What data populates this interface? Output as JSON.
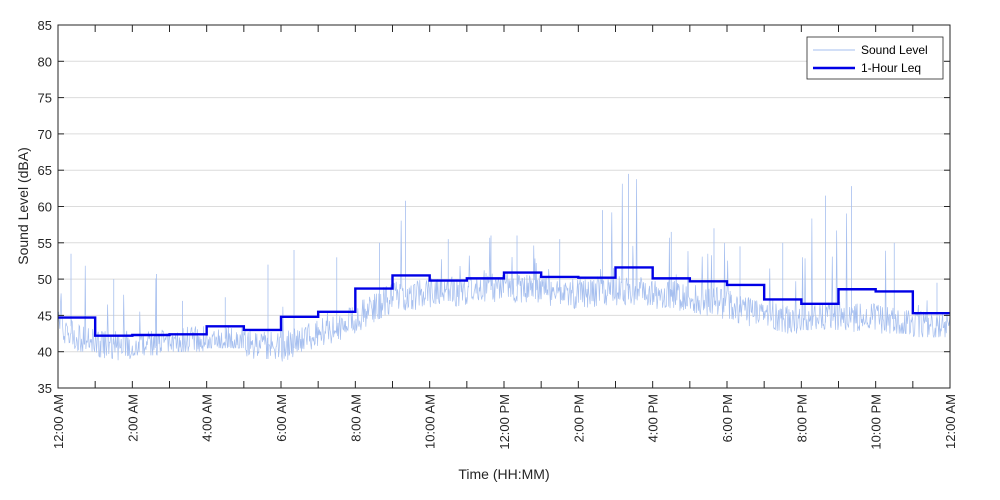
{
  "chart_data": {
    "type": "line",
    "xlabel": "Time (HH:MM)",
    "ylabel": "Sound Level (dBA)",
    "ylim": [
      35,
      85
    ],
    "yticks": [
      35,
      40,
      45,
      50,
      55,
      60,
      65,
      70,
      75,
      80,
      85
    ],
    "xlim_hours": [
      0,
      24
    ],
    "xtick_labels": [
      "12:00 AM",
      "2:00 AM",
      "4:00 AM",
      "6:00 AM",
      "8:00 AM",
      "10:00 AM",
      "12:00 PM",
      "2:00 PM",
      "4:00 PM",
      "6:00 PM",
      "8:00 PM",
      "10:00 PM",
      "12:00 AM"
    ],
    "grid": "horizontal",
    "legend": {
      "placement": "top-right",
      "entries": [
        "Sound Level",
        "1-Hour Leq"
      ]
    },
    "series": [
      {
        "name": "Sound Level",
        "style": "thin-line",
        "color": "#a6bfef",
        "hourly_typical": [
          43.5,
          41.0,
          40.8,
          41.0,
          41.8,
          41.2,
          40.5,
          42.5,
          44.5,
          47.5,
          48.0,
          48.5,
          49.0,
          48.5,
          48.0,
          48.5,
          48.0,
          47.5,
          46.5,
          45.0,
          44.0,
          45.0,
          44.5,
          43.5
        ],
        "hourly_peak": [
          53.5,
          50.0,
          50.7,
          47.0,
          47.5,
          52.0,
          54.0,
          53.0,
          55.0,
          60.8,
          55.5,
          56.0,
          56.0,
          55.5,
          59.5,
          64.5,
          56.5,
          57.0,
          54.5,
          55.0,
          61.5,
          62.8,
          55.0,
          49.5
        ],
        "hourly_min": [
          40.0,
          38.0,
          39.5,
          40.0,
          40.5,
          39.0,
          38.5,
          39.5,
          42.0,
          44.0,
          44.0,
          44.0,
          44.5,
          44.5,
          44.5,
          44.0,
          44.0,
          43.5,
          43.0,
          42.5,
          43.0,
          42.5,
          42.5,
          42.0
        ]
      },
      {
        "name": "1-Hour Leq",
        "style": "step",
        "color": "#0000e6",
        "hours": [
          0,
          1,
          2,
          3,
          4,
          5,
          6,
          7,
          8,
          9,
          10,
          11,
          12,
          13,
          14,
          15,
          16,
          17,
          18,
          19,
          20,
          21,
          22,
          23
        ],
        "values": [
          44.7,
          42.2,
          42.3,
          42.4,
          43.5,
          43.0,
          44.8,
          45.5,
          48.7,
          50.5,
          49.8,
          50.1,
          50.9,
          50.3,
          50.2,
          51.6,
          50.1,
          49.7,
          49.2,
          47.2,
          46.6,
          48.6,
          48.3,
          45.3
        ]
      }
    ]
  }
}
